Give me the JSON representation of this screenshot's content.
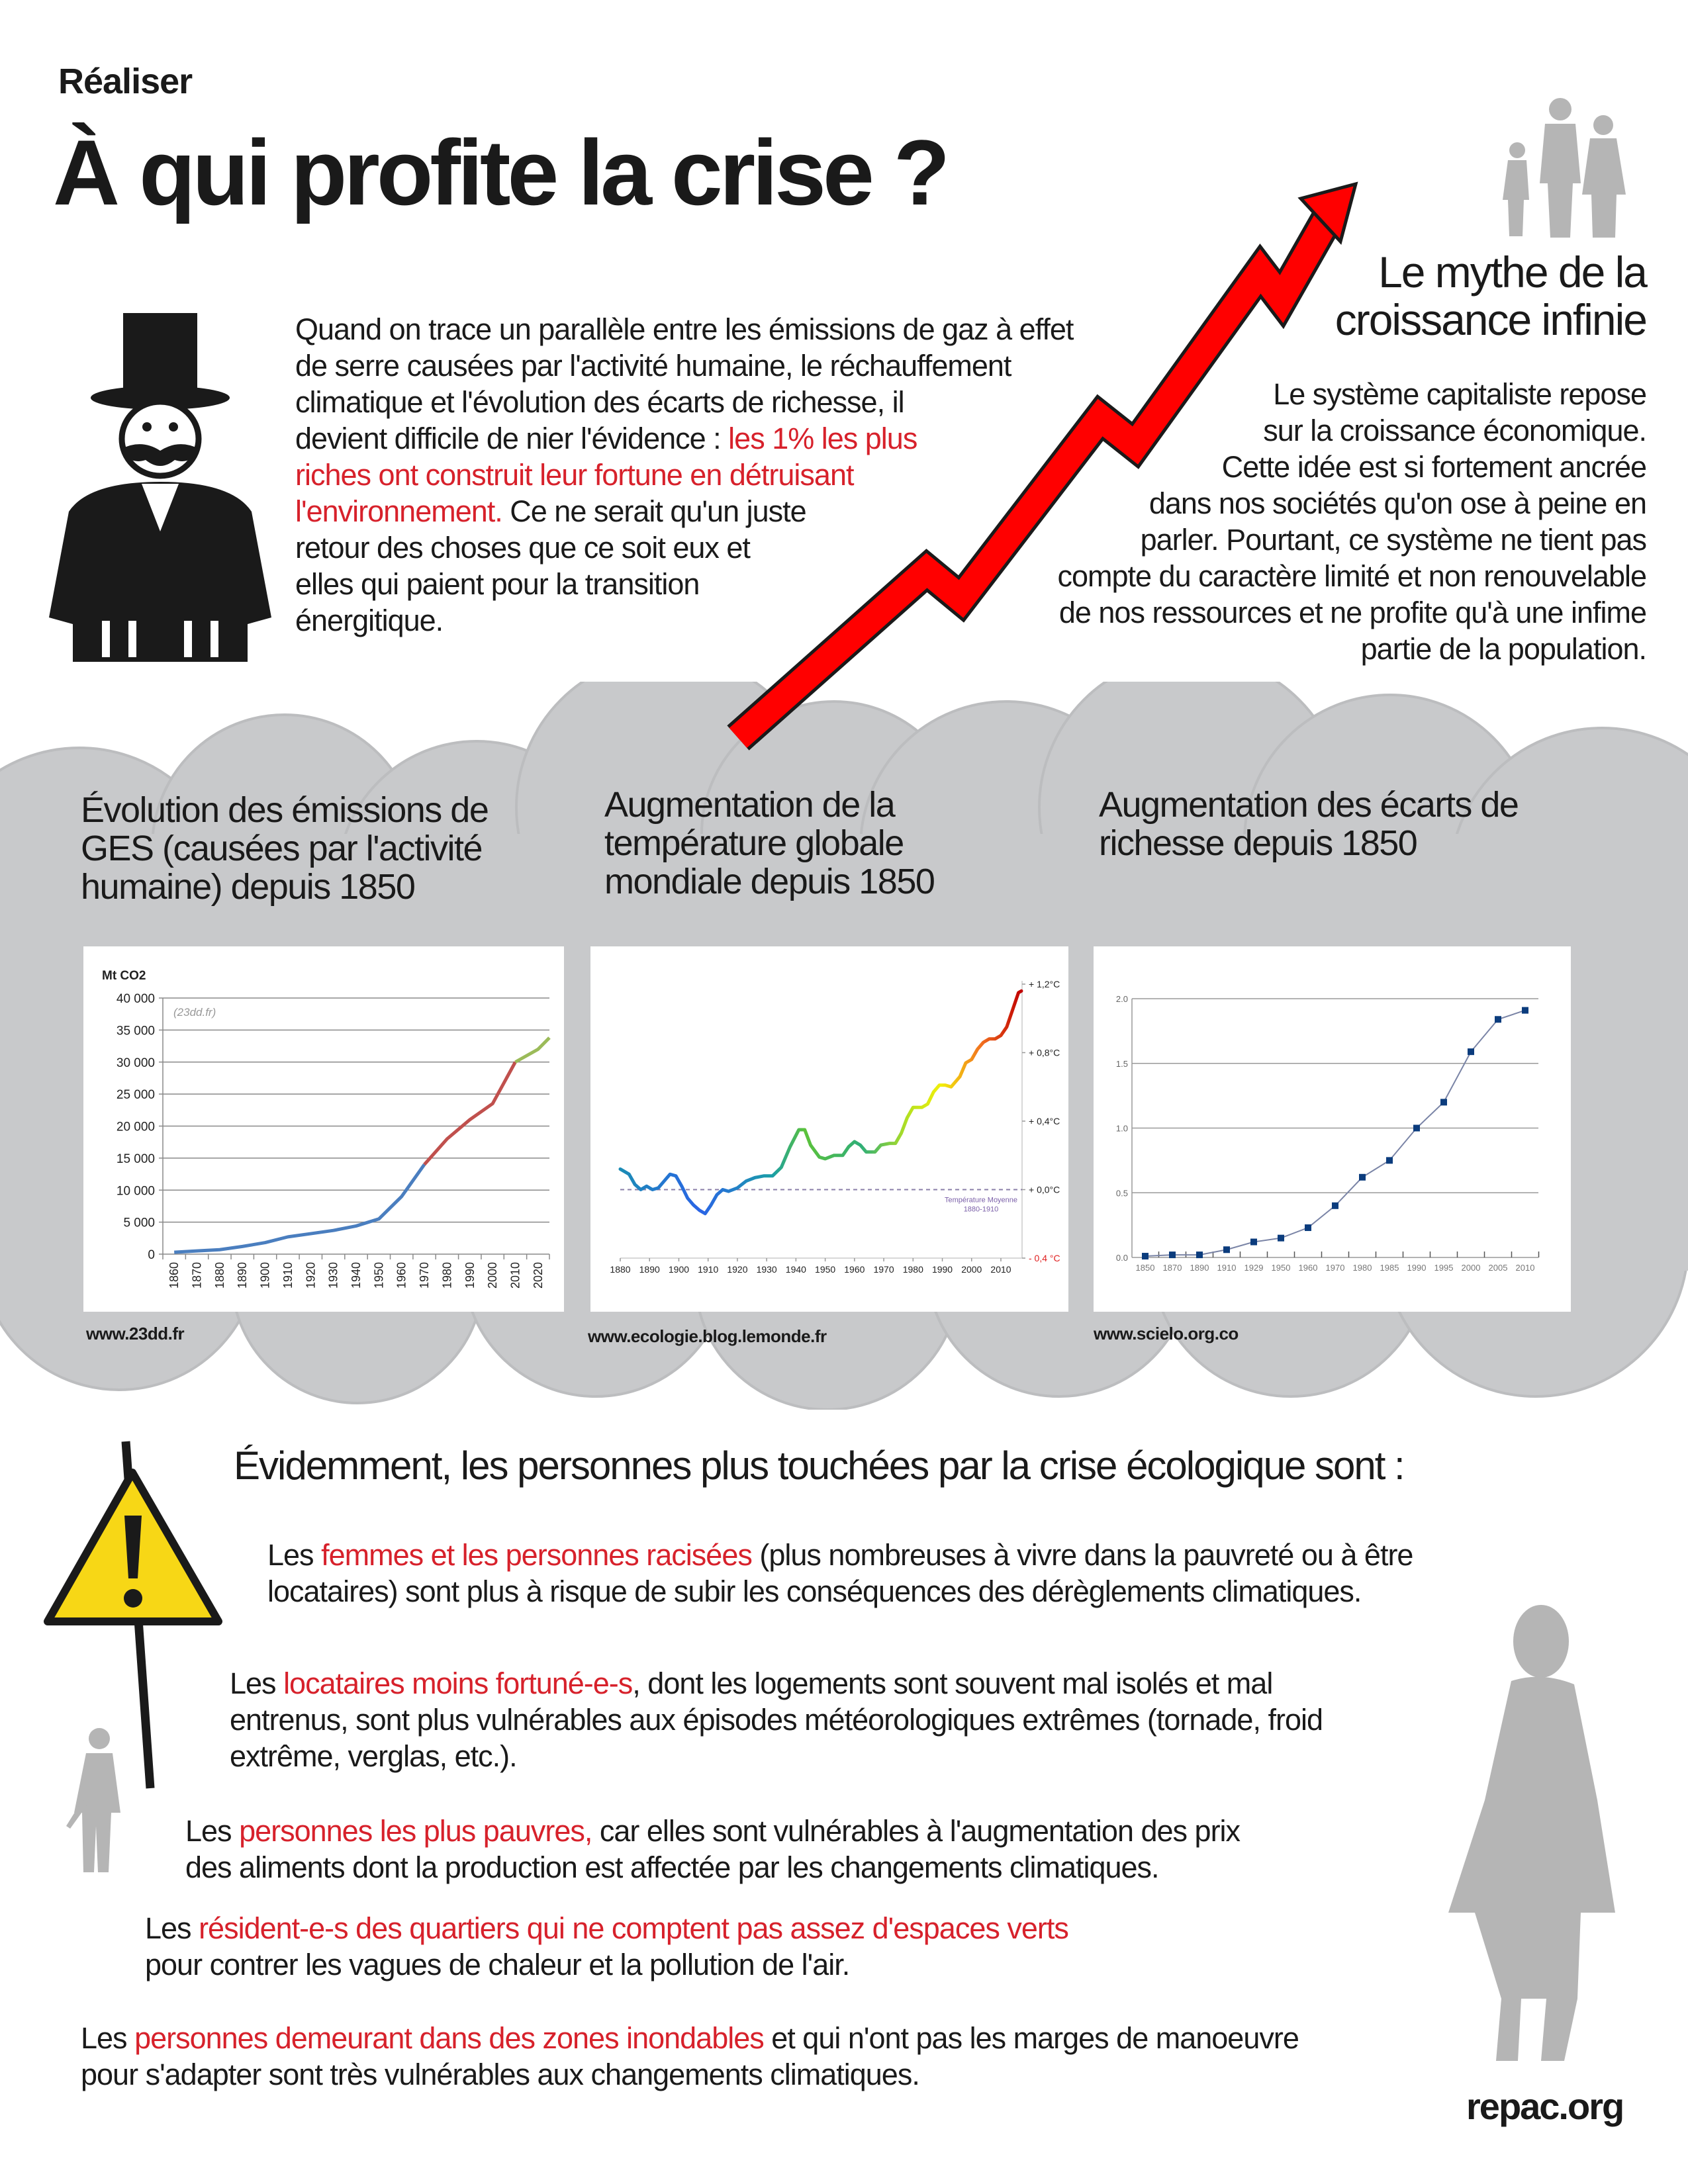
{
  "header": {
    "kicker": "Réaliser",
    "title": "À qui profite la crise ?"
  },
  "intro": {
    "lines": [
      [
        {
          "t": "Quand on trace un parallèle entre les émissions de gaz à effet"
        }
      ],
      [
        {
          "t": "de serre causées par  l'activité humaine, le réchauffement"
        }
      ],
      [
        {
          "t": "climatique et l'évolution des écarts de richesse, il"
        }
      ],
      [
        {
          "t": "devient difficile de nier l'évidence : "
        },
        {
          "t": "les 1% les plus",
          "red": true
        }
      ],
      [
        {
          "t": "riches ont construit leur fortune en détruisant",
          "red": true
        }
      ],
      [
        {
          "t": "l'environnement.",
          "red": true
        },
        {
          "t": " Ce ne serait qu'un juste"
        }
      ],
      [
        {
          "t": "retour des choses que ce soit eux et"
        }
      ],
      [
        {
          "t": "elles qui paient pour la transition"
        }
      ],
      [
        {
          "t": "énergitique."
        }
      ]
    ]
  },
  "myth": {
    "title_lines": [
      "Le mythe de la",
      "croissance infinie"
    ],
    "lines": [
      "Le système capitaliste repose",
      "sur la croissance économique.",
      "Cette idée est si fortement ancrée",
      "dans nos sociétés qu'on ose à peine en",
      "parler. Pourtant, ce système ne tient pas",
      "compte du caractère limité et non renouvelable",
      "de nos ressources et ne profite qu'à une infime",
      "partie de la population."
    ]
  },
  "colors": {
    "accent_red": "#d7212b",
    "arrow_red": "#ff0000",
    "cloud_gray": "#c8c9cb",
    "warning_yellow": "#f7d716",
    "silhouette_gray": "#b5b5b5"
  },
  "icons": [
    "businessman-icon",
    "rising-arrow-icon",
    "family-silhouette-icon",
    "warning-sign-icon",
    "man-silhouette-icon",
    "woman-silhouette-icon"
  ],
  "sections": [
    {
      "title_lines": [
        "Évolution des émissions de",
        "GES (causées par l'activité",
        "humaine) depuis 1850"
      ],
      "source": "www.23dd.fr"
    },
    {
      "title_lines": [
        "Augmentation de la",
        "température globale",
        "mondiale depuis 1850"
      ],
      "source": "www.ecologie.blog.lemonde.fr"
    },
    {
      "title_lines": [
        "Augmentation des écarts de",
        "richesse depuis 1850"
      ],
      "source": "www.scielo.org.co"
    }
  ],
  "chart_data": [
    {
      "type": "line",
      "ylabel": "Mt CO2",
      "annotation": "(23dd.fr)",
      "ylim": [
        0,
        40000
      ],
      "yticks": [
        "0",
        "5 000",
        "10 000",
        "15 000",
        "20 000",
        "25 000",
        "30 000",
        "35 000",
        "40 000"
      ],
      "ytick_values": [
        0,
        5000,
        10000,
        15000,
        20000,
        25000,
        30000,
        35000,
        40000
      ],
      "xticks": [
        "1860",
        "1870",
        "1880",
        "1890",
        "1900",
        "1910",
        "1920",
        "1930",
        "1940",
        "1950",
        "1960",
        "1970",
        "1980",
        "1990",
        "2000",
        "2010",
        "2020"
      ],
      "grid": true,
      "segments": [
        {
          "color": "#4a7ebf",
          "x": [
            1860,
            1870,
            1880,
            1890,
            1900,
            1910,
            1920,
            1930,
            1940,
            1950,
            1960,
            1970
          ],
          "y": [
            300,
            500,
            700,
            1200,
            1800,
            2700,
            3200,
            3700,
            4400,
            5500,
            9000,
            14000
          ]
        },
        {
          "color": "#c0504d",
          "x": [
            1970,
            1980,
            1990,
            2000,
            2010
          ],
          "y": [
            14000,
            18000,
            21000,
            23500,
            30000
          ]
        },
        {
          "color": "#9bbb59",
          "x": [
            2010,
            2020,
            2025
          ],
          "y": [
            30000,
            32000,
            33800
          ]
        }
      ]
    },
    {
      "type": "line",
      "ylim": [
        -0.4,
        1.2
      ],
      "yticks": [
        "- 0,4 °C",
        "+ 0,0°C",
        "+ 0,4°C",
        "+ 0,8°C",
        "+ 1,2°C"
      ],
      "ytick_values": [
        -0.4,
        0,
        0.4,
        0.8,
        1.2
      ],
      "xticks": [
        "1880",
        "1890",
        "1900",
        "1910",
        "1920",
        "1930",
        "1940",
        "1950",
        "1960",
        "1970",
        "1980",
        "1990",
        "2000",
        "2010"
      ],
      "reference_line": {
        "y": 0,
        "label_lines": [
          "Température Moyenne",
          "1880-1910"
        ]
      },
      "x": [
        1880,
        1883,
        1885,
        1887,
        1889,
        1891,
        1893,
        1895,
        1897,
        1899,
        1901,
        1903,
        1905,
        1907,
        1909,
        1911,
        1913,
        1915,
        1917,
        1920,
        1923,
        1926,
        1929,
        1932,
        1935,
        1938,
        1941,
        1943,
        1945,
        1948,
        1950,
        1953,
        1956,
        1958,
        1960,
        1962,
        1964,
        1967,
        1969,
        1972,
        1974,
        1976,
        1978,
        1980,
        1983,
        1985,
        1987,
        1989,
        1991,
        1993,
        1996,
        1998,
        2000,
        2002,
        2004,
        2006,
        2008,
        2010,
        2012,
        2014,
        2016,
        2017
      ],
      "y": [
        0.12,
        0.09,
        0.03,
        0.0,
        0.02,
        0.0,
        0.01,
        0.05,
        0.09,
        0.08,
        0.02,
        -0.05,
        -0.09,
        -0.12,
        -0.14,
        -0.09,
        -0.03,
        0.0,
        -0.01,
        0.01,
        0.05,
        0.07,
        0.08,
        0.08,
        0.13,
        0.25,
        0.35,
        0.35,
        0.26,
        0.19,
        0.18,
        0.2,
        0.2,
        0.25,
        0.28,
        0.26,
        0.22,
        0.22,
        0.26,
        0.27,
        0.27,
        0.33,
        0.42,
        0.48,
        0.48,
        0.5,
        0.57,
        0.61,
        0.61,
        0.6,
        0.66,
        0.74,
        0.76,
        0.82,
        0.86,
        0.88,
        0.88,
        0.9,
        0.95,
        1.05,
        1.15,
        1.16
      ]
    },
    {
      "type": "line",
      "ylim": [
        0,
        2.0
      ],
      "yticks": [
        "0.0",
        "0.5",
        "1.0",
        "1.5",
        "2.0"
      ],
      "ytick_values": [
        0,
        0.5,
        1.0,
        1.5,
        2.0
      ],
      "categories": [
        "1850",
        "1870",
        "1890",
        "1910",
        "1929",
        "1950",
        "1960",
        "1970",
        "1980",
        "1985",
        "1990",
        "1995",
        "2000",
        "2005",
        "2010"
      ],
      "values": [
        0.01,
        0.02,
        0.02,
        0.06,
        0.12,
        0.15,
        0.23,
        0.4,
        0.62,
        0.75,
        1.0,
        1.2,
        1.59,
        1.84,
        1.91
      ],
      "marker": "square",
      "color": "#0b3c7d",
      "grid": true
    }
  ],
  "impacts": {
    "heading": "Évidemment, les personnes plus touchées par la crise écologique sont :",
    "items": [
      [
        [
          {
            "t": "Les "
          },
          {
            "t": "femmes et les personnes racisées",
            "red": true
          },
          {
            "t": " (plus nombreuses à vivre dans la pauvreté ou à être"
          }
        ],
        [
          {
            "t": "locataires) sont plus à risque de subir les conséquences des dérèglements climatiques."
          }
        ]
      ],
      [
        [
          {
            "t": "Les "
          },
          {
            "t": "locataires moins fortuné-e-s",
            "red": true
          },
          {
            "t": ", dont les logements sont souvent mal isolés et mal"
          }
        ],
        [
          {
            "t": "entrenus, sont plus vulnérables aux épisodes météorologiques extrêmes (tornade, froid"
          }
        ],
        [
          {
            "t": "extrême, verglas, etc.)."
          }
        ]
      ],
      [
        [
          {
            "t": "Les "
          },
          {
            "t": "personnes les plus pauvres,",
            "red": true
          },
          {
            "t": " car elles sont vulnérables à l'augmentation des prix"
          }
        ],
        [
          {
            "t": "des aliments dont la production est affectée par les changements climatiques."
          }
        ]
      ],
      [
        [
          {
            "t": "Les "
          },
          {
            "t": "résident-e-s des quartiers qui ne comptent pas assez d'espaces verts",
            "red": true
          }
        ],
        [
          {
            "t": "pour contrer les vagues de chaleur et la pollution de l'air."
          }
        ]
      ],
      [
        [
          {
            "t": "Les "
          },
          {
            "t": "personnes demeurant dans des zones inondables",
            "red": true
          },
          {
            "t": " et qui n'ont pas les marges de manoeuvre"
          }
        ],
        [
          {
            "t": "pour s'adapter sont très vulnérables aux changements climatiques."
          }
        ]
      ]
    ]
  },
  "footer": {
    "site": "repac.org"
  }
}
